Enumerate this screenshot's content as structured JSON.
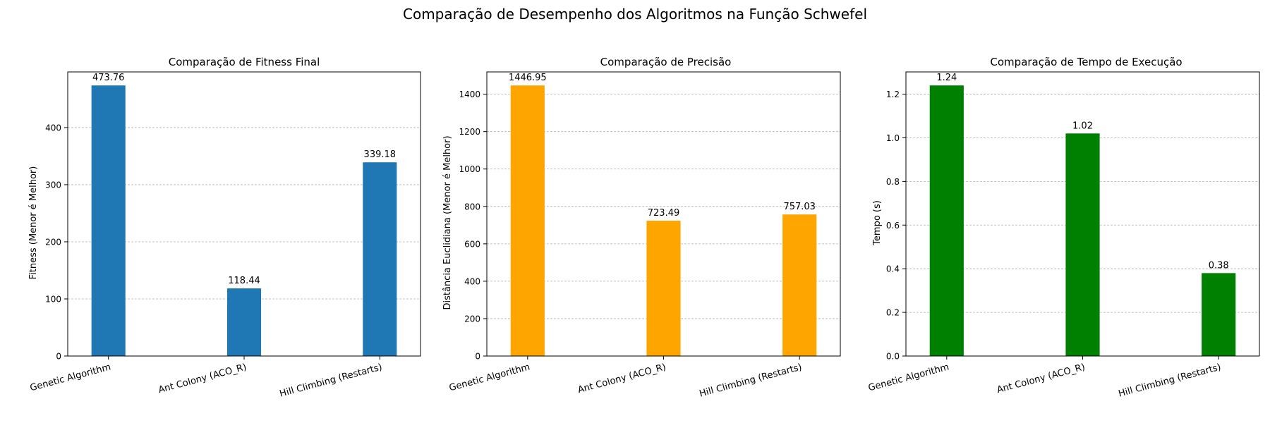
{
  "figure": {
    "title": "Comparação de Desempenho dos Algoritmos na Função Schwefel"
  },
  "chart_data": [
    {
      "type": "bar",
      "title": "Comparação de Fitness Final",
      "xlabel": "",
      "ylabel": "Fitness (Menor é Melhor)",
      "categories": [
        "Genetic Algorithm",
        "Ant Colony (ACO_R)",
        "Hill Climbing (Restarts)"
      ],
      "values": [
        473.76,
        118.44,
        339.18
      ],
      "value_labels": [
        "473.76",
        "118.44",
        "339.18"
      ],
      "ylim": [
        0,
        497.45
      ],
      "yticks": [
        0,
        100,
        200,
        300,
        400
      ],
      "ytick_labels": [
        "0",
        "100",
        "200",
        "300",
        "400"
      ],
      "color": "#1f77b4",
      "grid": "y-dashed"
    },
    {
      "type": "bar",
      "title": "Comparação de Precisão",
      "xlabel": "",
      "ylabel": "Distância Euclidiana (Menor é Melhor)",
      "categories": [
        "Genetic Algorithm",
        "Ant Colony (ACO_R)",
        "Hill Climbing (Restarts)"
      ],
      "values": [
        1446.95,
        723.49,
        757.03
      ],
      "value_labels": [
        "1446.95",
        "723.49",
        "757.03"
      ],
      "ylim": [
        0,
        1519.3
      ],
      "yticks": [
        0,
        200,
        400,
        600,
        800,
        1000,
        1200,
        1400
      ],
      "ytick_labels": [
        "0",
        "200",
        "400",
        "600",
        "800",
        "1000",
        "1200",
        "1400"
      ],
      "color": "#ffa500",
      "grid": "y-dashed"
    },
    {
      "type": "bar",
      "title": "Comparação de Tempo de Execução",
      "xlabel": "",
      "ylabel": "Tempo (s)",
      "categories": [
        "Genetic Algorithm",
        "Ant Colony (ACO_R)",
        "Hill Climbing (Restarts)"
      ],
      "values": [
        1.24,
        1.02,
        0.38
      ],
      "value_labels": [
        "1.24",
        "1.02",
        "0.38"
      ],
      "ylim": [
        0,
        1.302
      ],
      "yticks": [
        0.0,
        0.2,
        0.4,
        0.6,
        0.8,
        1.0,
        1.2
      ],
      "ytick_labels": [
        "0.0",
        "0.2",
        "0.4",
        "0.6",
        "0.8",
        "1.0",
        "1.2"
      ],
      "color": "#008000",
      "grid": "y-dashed"
    }
  ]
}
